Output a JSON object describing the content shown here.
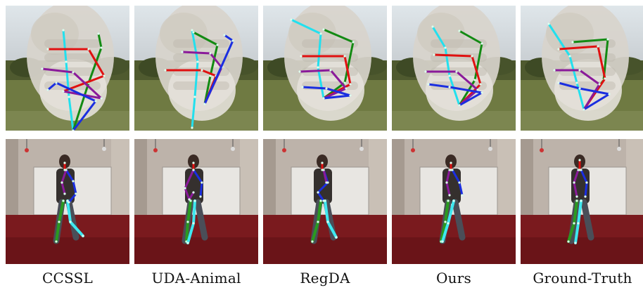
{
  "columns": [
    {
      "key": "ccssl",
      "label": "CCSSL"
    },
    {
      "key": "uda-animal",
      "label": "UDA-Animal"
    },
    {
      "key": "regda",
      "label": "RegDA"
    },
    {
      "key": "ours",
      "label": "Ours"
    },
    {
      "key": "ground-truth",
      "label": "Ground-Truth"
    }
  ],
  "rows": [
    {
      "key": "hand",
      "content": "hand pose skeletons over blurred hand in outdoor scene"
    },
    {
      "key": "human",
      "content": "full-body pose skeletons over person standing in room"
    }
  ],
  "colors": {
    "thumb": "#22e0ee",
    "index": "#138a13",
    "middle": "#e01010",
    "ring": "#8a1a9a",
    "pinky": "#1a2ee0",
    "leg_left": "#2a9a20",
    "leg_right": "#3ee8f0",
    "arm_left": "#1a2ee0",
    "arm_right": "#8a1a9a",
    "head": "#e01010"
  }
}
